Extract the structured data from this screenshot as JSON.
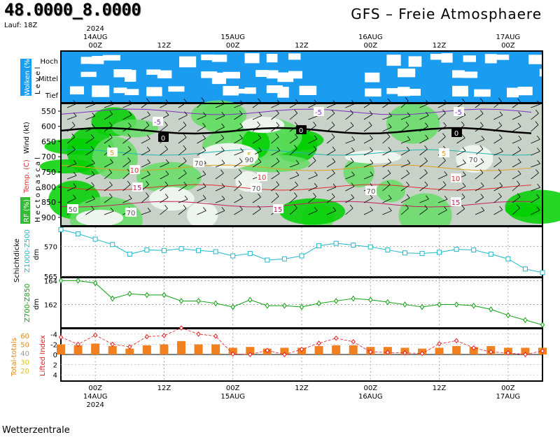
{
  "header": {
    "coords": "48.0000_8.0000",
    "run": "Lauf: 18Z",
    "title": "GFS  –  Freie Atmosphaere"
  },
  "footer": {
    "source": "Wetterzentrale"
  },
  "colors": {
    "cloud_bg": "#1a9cf0",
    "rh_dark": "#00c800",
    "rh_mid": "#66dd66",
    "thickness1": "#20b8c8",
    "thickness2": "#10a010",
    "bars": "#f08020",
    "lifted": "#e02020",
    "temp_axis": "#e03030",
    "rh_axis_bg": "#33bb33"
  },
  "time_axis": {
    "ticks": [
      {
        "top": "00Z",
        "mid": "14AUG",
        "year": "2024"
      },
      {
        "top": "12Z",
        "mid": "",
        "year": ""
      },
      {
        "top": "00Z",
        "mid": "15AUG",
        "year": ""
      },
      {
        "top": "12Z",
        "mid": "",
        "year": ""
      },
      {
        "top": "00Z",
        "mid": "16AUG",
        "year": ""
      },
      {
        "top": "12Z",
        "mid": "",
        "year": ""
      },
      {
        "top": "00Z",
        "mid": "17AUG",
        "year": ""
      }
    ],
    "hours": [
      0,
      12,
      24,
      36,
      48,
      60,
      72
    ],
    "start_hour": -6,
    "end_hour": 78
  },
  "cloud_panel": {
    "axis_title": "Wolken (%)",
    "level_title": "L e v e l",
    "levels": [
      "Hoch",
      "Mittel",
      "Tief"
    ]
  },
  "atmos_panel": {
    "axis_title": "H e c t o p a s c a l",
    "wind_label": "Wind (kt)",
    "temp_label": "Temp. (C)",
    "rh_label": "RF (%)",
    "pressure_levels": [
      "550",
      "600",
      "650",
      "700",
      "750",
      "800",
      "850",
      "900"
    ],
    "temp_contour_labels": [
      "-5",
      "-5",
      "-5",
      "0",
      "0",
      "0",
      "5",
      "5",
      "5",
      "10",
      "10",
      "10",
      "15",
      "15",
      "15"
    ],
    "rh_contour_labels": [
      "70",
      "70",
      "70",
      "70",
      "70",
      "50",
      "90"
    ]
  },
  "chart_data": [
    {
      "type": "line",
      "title": "Schichtdicke",
      "series": [
        {
          "name": "Z1000-Z500",
          "unit": "dm",
          "x": [
            -6,
            -3,
            0,
            3,
            6,
            9,
            12,
            15,
            18,
            21,
            24,
            27,
            30,
            33,
            36,
            39,
            42,
            45,
            48,
            51,
            54,
            57,
            60,
            63,
            66,
            69,
            72,
            75,
            78
          ],
          "values": [
            572.8,
            572.1,
            571.2,
            570.3,
            568.7,
            569.4,
            569.3,
            569.6,
            569.3,
            569.1,
            568.4,
            568.8,
            567.7,
            567.9,
            568.4,
            570.1,
            570.5,
            570.2,
            569.9,
            569.4,
            568.9,
            568.8,
            569.0,
            569.5,
            569.4,
            568.7,
            567.9,
            566.2,
            565.6
          ]
        }
      ],
      "yticks": [
        565,
        570
      ],
      "ylim": [
        565,
        573.2
      ]
    },
    {
      "type": "line",
      "series": [
        {
          "name": "Z700-Z850",
          "unit": "dm",
          "x": [
            -6,
            -3,
            0,
            3,
            6,
            9,
            12,
            15,
            18,
            21,
            24,
            27,
            30,
            33,
            36,
            39,
            42,
            45,
            48,
            51,
            54,
            57,
            60,
            63,
            66,
            69,
            72,
            75,
            78
          ],
          "values": [
            164.0,
            164.0,
            163.8,
            162.5,
            162.9,
            162.8,
            162.8,
            162.3,
            162.3,
            162.1,
            161.8,
            162.4,
            161.9,
            161.9,
            161.8,
            162.1,
            162.3,
            162.5,
            162.4,
            162.2,
            162.0,
            161.8,
            162.0,
            162.0,
            161.9,
            161.6,
            161.1,
            160.7,
            160.3
          ]
        }
      ],
      "yticks": [
        162,
        164
      ],
      "ylim": [
        160.1,
        164.2
      ]
    },
    {
      "type": "bar",
      "series": [
        {
          "name": "Total-totals",
          "type": "bar",
          "x": [
            -6,
            -3,
            0,
            3,
            6,
            9,
            12,
            15,
            18,
            21,
            24,
            27,
            30,
            33,
            36,
            39,
            42,
            45,
            48,
            51,
            54,
            57,
            60,
            63,
            66,
            69,
            72,
            75,
            78
          ],
          "values": [
            52,
            51,
            53,
            50,
            47,
            51,
            52,
            56,
            52,
            52,
            48,
            49,
            47,
            48,
            48,
            50,
            51,
            51,
            49,
            49,
            48,
            47,
            48,
            50,
            49,
            50,
            48,
            48,
            48
          ]
        },
        {
          "name": "Lifted Index",
          "type": "line",
          "x": [
            -6,
            -3,
            0,
            3,
            6,
            9,
            12,
            15,
            18,
            21,
            24,
            27,
            30,
            33,
            36,
            39,
            42,
            45,
            48,
            51,
            54,
            57,
            60,
            63,
            66,
            69,
            72,
            75,
            78
          ],
          "values": [
            -3.4,
            -2.0,
            -3.8,
            -2.0,
            -1.5,
            -3.5,
            -3.7,
            -5.2,
            -4.0,
            -3.6,
            -0.1,
            0.0,
            -0.8,
            0.0,
            -1.0,
            -2.2,
            -3.2,
            -2.5,
            -0.5,
            -0.4,
            -0.3,
            -0.2,
            -2.1,
            -2.7,
            -1.3,
            -0.5,
            -0.3,
            0.0,
            -0.7
          ]
        }
      ],
      "left_axis": {
        "label": "Total-totals",
        "ticks": [
          "60",
          "50",
          "40",
          "30",
          "20"
        ]
      },
      "right_axis": {
        "label": "Lifted Index",
        "ticks": [
          "-4",
          "-2",
          "0",
          "2",
          "4"
        ]
      }
    }
  ]
}
